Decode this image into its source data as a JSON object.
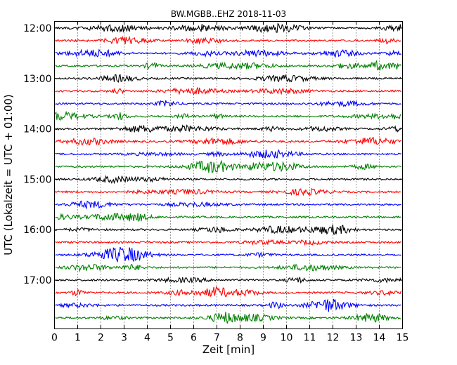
{
  "chart_data": {
    "type": "line",
    "title": "BW.MGBB..EHZ 2018-11-03",
    "xlabel": "Zeit  [min]",
    "ylabel": "UTC (Lokalzeit = UTC + 01:00)",
    "xlim": [
      0,
      15
    ],
    "x_ticks": [
      "0",
      "1",
      "2",
      "3",
      "4",
      "5",
      "6",
      "7",
      "8",
      "9",
      "10",
      "11",
      "12",
      "13",
      "14",
      "15"
    ],
    "y_tick_labels": [
      "12:00",
      "13:00",
      "14:00",
      "15:00",
      "16:00",
      "17:00"
    ],
    "trace_start_times": [
      "12:00",
      "12:15",
      "12:30",
      "12:45",
      "13:00",
      "13:15",
      "13:30",
      "13:45",
      "14:00",
      "14:15",
      "14:30",
      "14:45",
      "15:00",
      "15:15",
      "15:30",
      "15:45",
      "16:00",
      "16:15",
      "16:30",
      "16:45",
      "17:00",
      "17:15",
      "17:30",
      "17:45"
    ],
    "trace_colors": [
      "#000000",
      "#ff0000",
      "#0000ff",
      "#008000"
    ],
    "grid": "vertical dotted"
  }
}
